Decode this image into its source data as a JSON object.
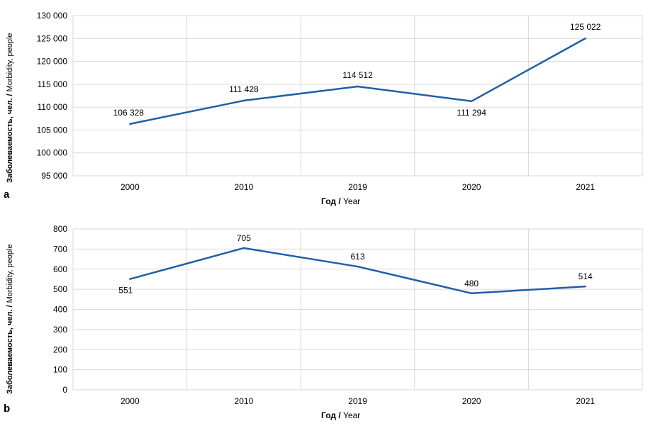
{
  "chart_data": [
    {
      "type": "line",
      "panel_label": "a",
      "ylabel_ru": "Заболеваемость, чел. / ",
      "ylabel_en": "Morbidity, people",
      "xlabel_ru": "Год / ",
      "xlabel_en": "Year",
      "x": [
        "2000",
        "2010",
        "2019",
        "2020",
        "2021"
      ],
      "values": [
        106328,
        111428,
        114512,
        111294,
        125022
      ],
      "data_labels": [
        "106 328",
        "111 428",
        "114 512",
        "111 294",
        "125 022"
      ],
      "yticks": [
        "95 000",
        "100 000",
        "105 000",
        "110 000",
        "115 000",
        "120 000",
        "125 000",
        "130 000"
      ],
      "ylim": [
        95000,
        130000
      ],
      "line_color": "#1f5fa6",
      "grid": true
    },
    {
      "type": "line",
      "panel_label": "b",
      "ylabel_ru": "Заболеваемость, чел. / ",
      "ylabel_en": "Morbidity, people",
      "xlabel_ru": "Год / ",
      "xlabel_en": "Year",
      "x": [
        "2000",
        "2010",
        "2019",
        "2020",
        "2021"
      ],
      "values": [
        551,
        705,
        613,
        480,
        514
      ],
      "data_labels": [
        "551",
        "705",
        "613",
        "480",
        "514"
      ],
      "yticks": [
        "0",
        "100",
        "200",
        "300",
        "400",
        "500",
        "600",
        "700",
        "800"
      ],
      "ylim": [
        0,
        800
      ],
      "line_color": "#1f5fa6",
      "grid": true
    }
  ]
}
